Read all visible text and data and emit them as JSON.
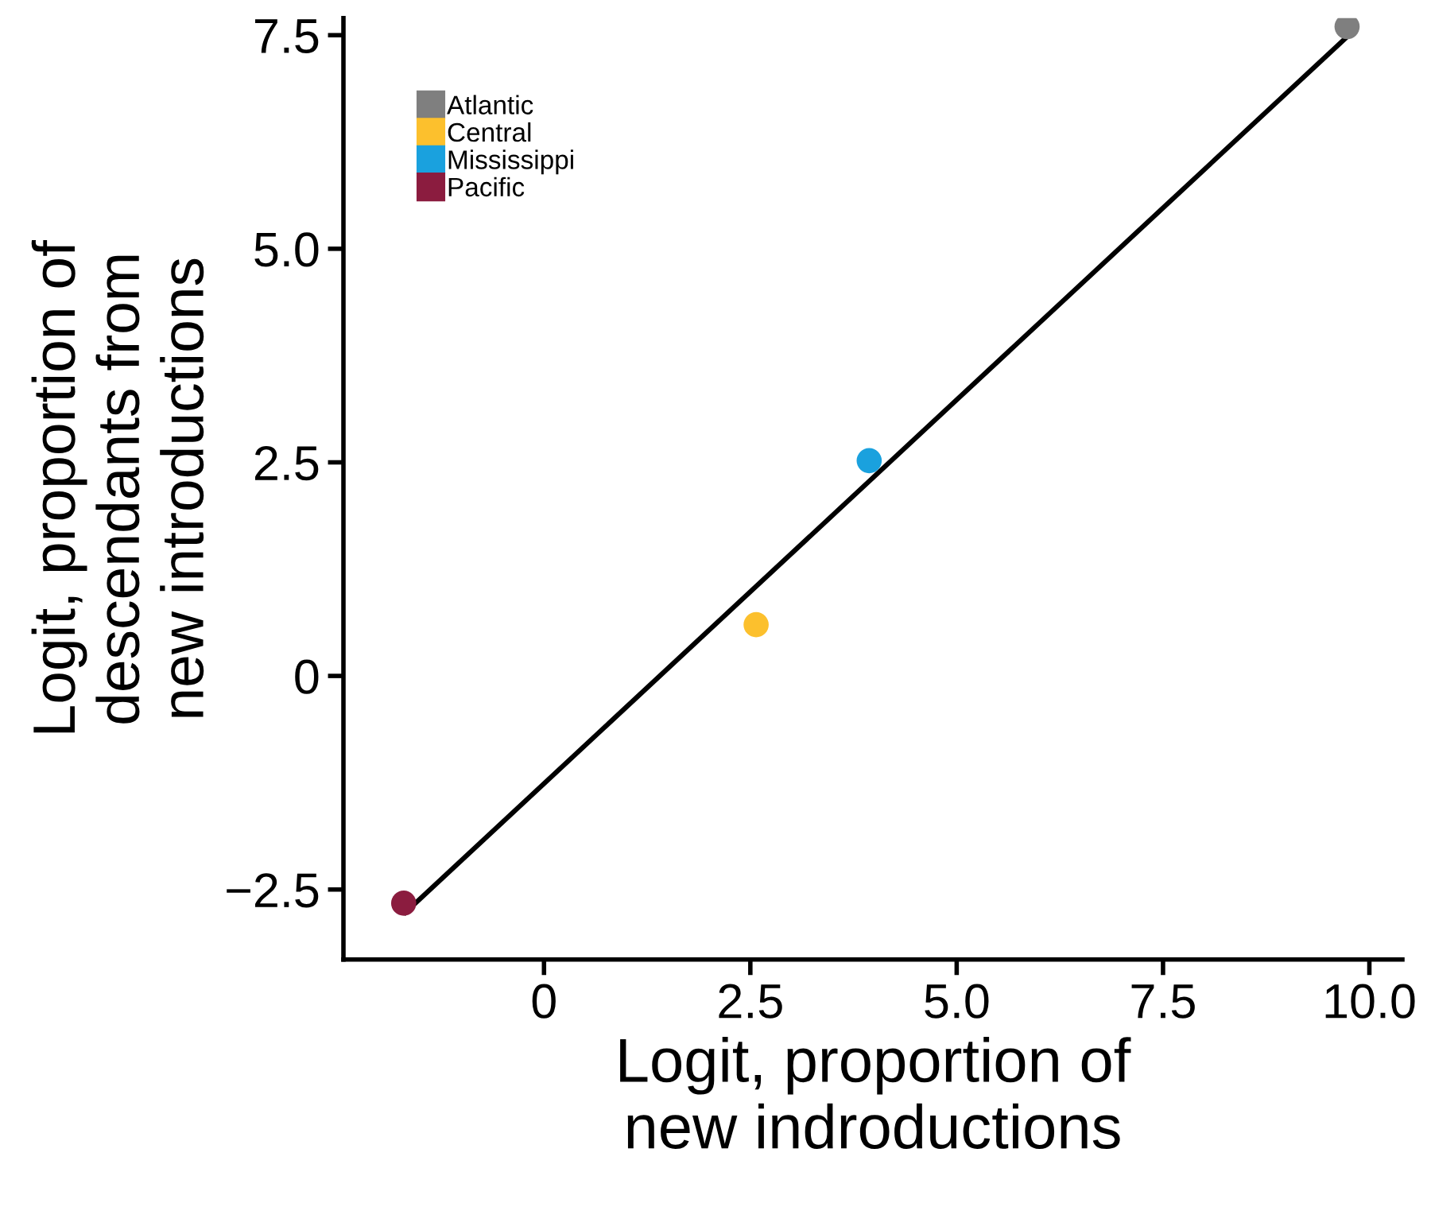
{
  "chart_data": {
    "type": "scatter",
    "xlabel": "Logit, proportion of\nnew indroductions",
    "ylabel": "Logit, proportion of\ndescendants from\nnew introductions",
    "xlim": [
      -2.43,
      10.4
    ],
    "ylim": [
      -3.32,
      7.7
    ],
    "xticks": [
      {
        "value": 0,
        "label": "0"
      },
      2.5,
      {
        "value": 5,
        "label": "5.0"
      },
      7.5,
      {
        "value": 10,
        "label": "10.0"
      }
    ],
    "yticks": [
      {
        "value": -2.5,
        "label": "−2.5"
      },
      {
        "value": 0,
        "label": "0"
      },
      2.5,
      {
        "value": 5,
        "label": "5.0"
      },
      7.5
    ],
    "grid": false,
    "legend": "top left",
    "marker": "circle",
    "series": [
      {
        "name": "Atlantic",
        "color": "#7f7f7f",
        "x": [
          9.73
        ],
        "values": [
          7.6
        ]
      },
      {
        "name": "Central",
        "color": "#fcc02d",
        "x": [
          2.57
        ],
        "values": [
          0.6
        ]
      },
      {
        "name": "Mississippi",
        "color": "#1aa1de",
        "x": [
          3.94
        ],
        "values": [
          2.52
        ]
      },
      {
        "name": "Pacific",
        "color": "#8b1c3f",
        "x": [
          -1.7
        ],
        "values": [
          -2.66
        ]
      },
      {
        "type": "line",
        "marker": "none",
        "color": "#000000",
        "x": [
          -1.68,
          9.75
        ],
        "values": [
          -2.77,
          7.5
        ]
      }
    ]
  }
}
